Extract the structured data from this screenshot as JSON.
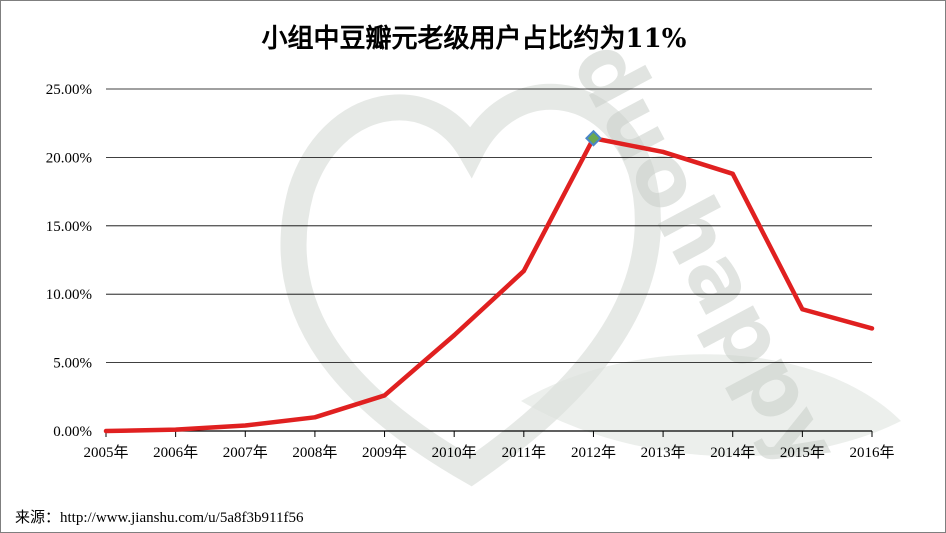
{
  "watermark": {
    "text": "duohappy",
    "color": "#c9cfc9"
  },
  "source": "来源：http://www.jianshu.com/u/5a8f3b911f56",
  "colors": {
    "line": "#e02020",
    "marker_fill": "#6aa84f",
    "marker_stroke": "#4a86c8",
    "grid": "#000000"
  },
  "chart_data": {
    "type": "line",
    "title": "小组中豆瓣元老级用户占比约为11%",
    "categories": [
      "2005年",
      "2006年",
      "2007年",
      "2008年",
      "2009年",
      "2010年",
      "2011年",
      "2012年",
      "2013年",
      "2014年",
      "2015年",
      "2016年"
    ],
    "values": [
      0.0,
      0.1,
      0.4,
      1.0,
      2.6,
      7.0,
      11.7,
      21.4,
      20.4,
      18.8,
      8.9,
      7.5
    ],
    "y_unit": "percent",
    "yticks": [
      "0.00%",
      "5.00%",
      "10.00%",
      "15.00%",
      "20.00%",
      "25.00%"
    ],
    "ylim": [
      0,
      25
    ],
    "grid": true,
    "legend": "none",
    "highlight_point": "2012年"
  }
}
